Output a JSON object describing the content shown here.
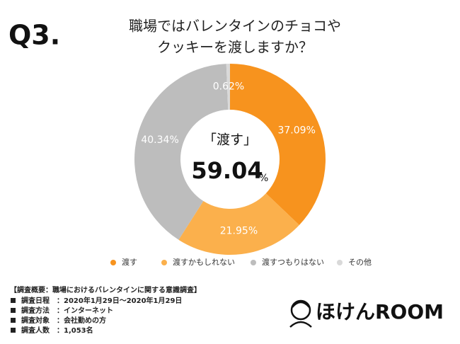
{
  "header": {
    "label": "Q3.",
    "title": [
      "職場ではバレンタインのチョコや",
      "クッキーを渡しますか？"
    ]
  },
  "chart_data": {
    "type": "donut",
    "categories": [
      "渡す",
      "渡すかもしれない",
      "渡すつもりはない",
      "その他"
    ],
    "values": [
      37.09,
      21.95,
      40.34,
      0.62
    ],
    "value_labels": [
      "37.09%",
      "21.95%",
      "40.34%",
      "0.62%"
    ],
    "colors": [
      "#f7931e",
      "#fbb04c",
      "#bdbdbd",
      "#d9d9d9"
    ],
    "center_label": "「渡す」",
    "center_value": 59.04,
    "center_unit": "%"
  },
  "notes": {
    "heading": "【調査概要：職場におけるバレンタインに関する意識調査】",
    "rows": [
      [
        "調査日程",
        "：2020年1月29日〜2020年1月29日"
      ],
      [
        "調査方法",
        "：インターネット"
      ],
      [
        "調査対象",
        "：会社勤めの方"
      ],
      [
        "調査人数",
        "：1,053名"
      ]
    ]
  },
  "logo": "ほけんROOM"
}
